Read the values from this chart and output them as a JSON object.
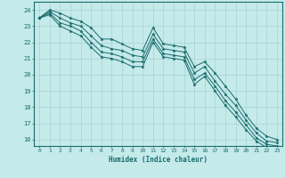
{
  "xlabel": "Humidex (Indice chaleur)",
  "bg_color": "#c5eaea",
  "grid_color": "#9ecece",
  "line_color": "#1a6b6b",
  "xlim": [
    -0.5,
    23.5
  ],
  "ylim": [
    15.6,
    24.5
  ],
  "yticks": [
    16,
    17,
    18,
    19,
    20,
    21,
    22,
    23,
    24
  ],
  "xticks": [
    0,
    1,
    2,
    3,
    4,
    5,
    6,
    7,
    8,
    9,
    10,
    11,
    12,
    13,
    14,
    15,
    16,
    17,
    18,
    19,
    20,
    21,
    22,
    23
  ],
  "lines": [
    [
      23.5,
      24.0,
      23.8,
      23.5,
      23.3,
      22.9,
      22.2,
      22.2,
      21.9,
      21.6,
      21.5,
      22.9,
      21.9,
      21.8,
      21.7,
      20.5,
      20.8,
      20.1,
      19.3,
      18.5,
      17.5,
      16.7,
      16.2,
      16.0
    ],
    [
      23.5,
      23.9,
      23.5,
      23.2,
      23.0,
      22.4,
      21.8,
      21.6,
      21.5,
      21.2,
      21.1,
      22.5,
      21.6,
      21.5,
      21.4,
      20.1,
      20.5,
      19.6,
      18.8,
      18.1,
      17.2,
      16.4,
      15.9,
      15.8
    ],
    [
      23.5,
      23.8,
      23.2,
      23.0,
      22.7,
      22.0,
      21.4,
      21.3,
      21.1,
      20.8,
      20.8,
      22.2,
      21.3,
      21.2,
      21.1,
      19.7,
      20.1,
      19.3,
      18.4,
      17.7,
      16.9,
      16.1,
      15.7,
      15.6
    ],
    [
      23.5,
      23.7,
      23.0,
      22.7,
      22.4,
      21.7,
      21.1,
      21.0,
      20.8,
      20.5,
      20.5,
      22.0,
      21.1,
      21.0,
      20.9,
      19.4,
      19.9,
      19.0,
      18.1,
      17.4,
      16.6,
      15.9,
      15.5,
      15.4
    ]
  ]
}
